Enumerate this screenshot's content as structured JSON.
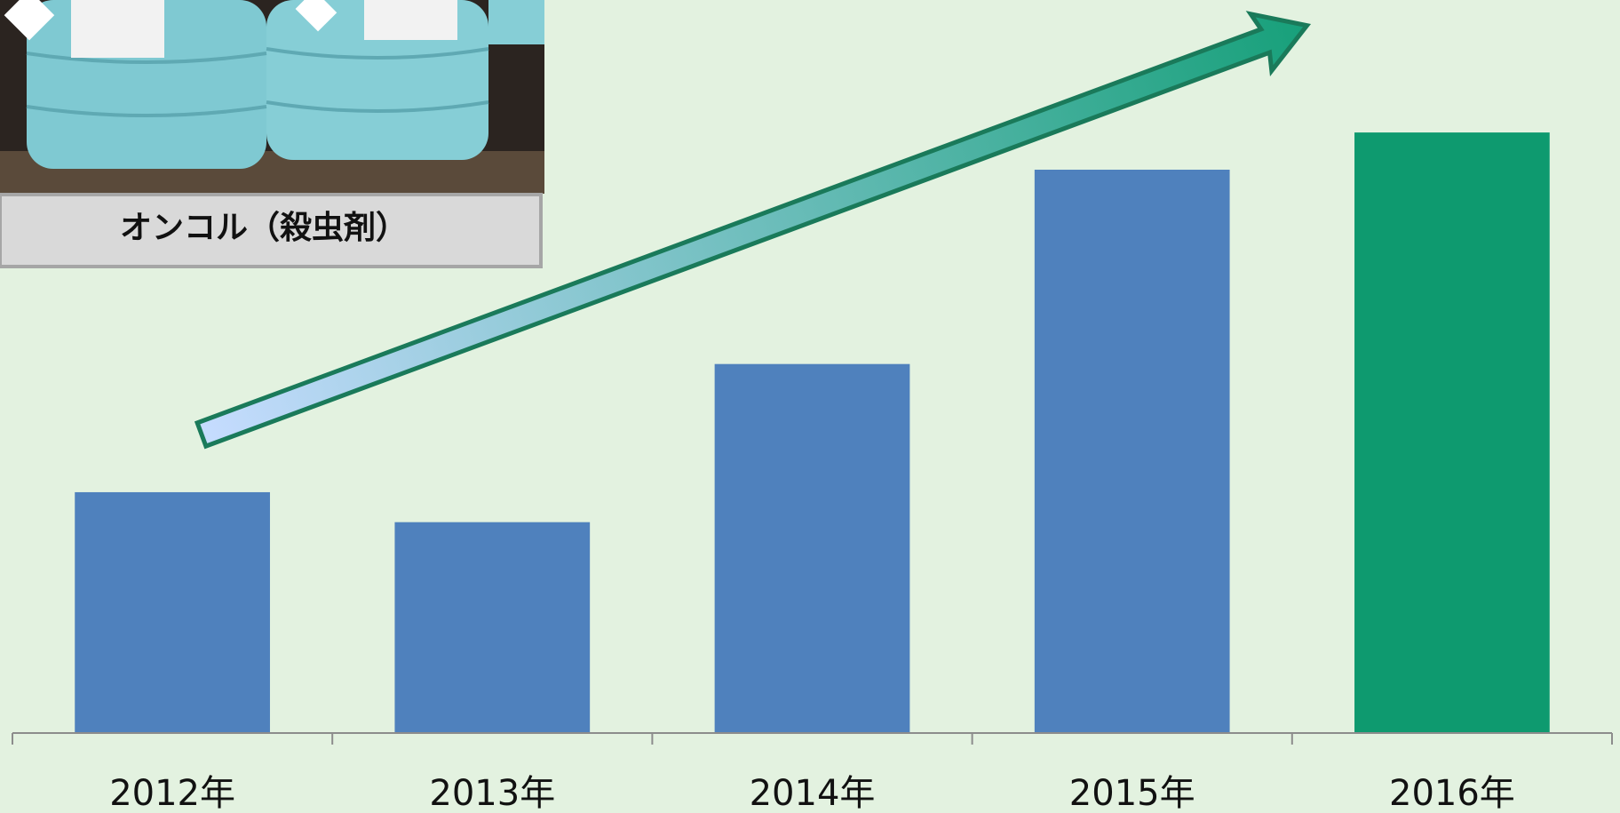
{
  "chart_data": {
    "type": "bar",
    "title": "オンコル（殺虫剤）",
    "categories": [
      "2012年",
      "2013年",
      "2014年",
      "2015年",
      "2016年"
    ],
    "values": [
      233,
      204,
      357,
      545,
      581
    ],
    "colors": [
      "#4f81bd",
      "#4f81bd",
      "#4f81bd",
      "#4f81bd",
      "#0e9a6f"
    ],
    "ylim": [
      0,
      600
    ]
  }
}
